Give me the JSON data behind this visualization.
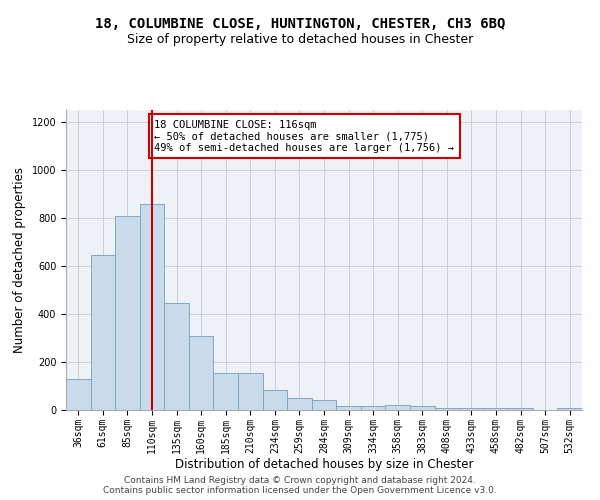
{
  "title_line1": "18, COLUMBINE CLOSE, HUNTINGTON, CHESTER, CH3 6BQ",
  "title_line2": "Size of property relative to detached houses in Chester",
  "xlabel": "Distribution of detached houses by size in Chester",
  "ylabel": "Number of detached properties",
  "bar_color": "#c9daea",
  "bar_edge_color": "#7aaac8",
  "grid_color": "#c8d0d8",
  "bg_color": "#eef2f7",
  "vline_color": "#cc0000",
  "vline_x": 3,
  "annotation_box_color": "#ffffff",
  "annotation_box_edge": "#cc0000",
  "annotation_line1": "18 COLUMBINE CLOSE: 116sqm",
  "annotation_line2": "← 50% of detached houses are smaller (1,775)",
  "annotation_line3": "49% of semi-detached houses are larger (1,756) →",
  "categories": [
    "36sqm",
    "61sqm",
    "85sqm",
    "110sqm",
    "135sqm",
    "160sqm",
    "185sqm",
    "210sqm",
    "234sqm",
    "259sqm",
    "284sqm",
    "309sqm",
    "334sqm",
    "358sqm",
    "383sqm",
    "408sqm",
    "433sqm",
    "458sqm",
    "482sqm",
    "507sqm",
    "532sqm"
  ],
  "values": [
    130,
    645,
    810,
    860,
    445,
    310,
    155,
    155,
    85,
    50,
    40,
    15,
    15,
    20,
    15,
    10,
    10,
    10,
    10,
    0,
    10
  ],
  "ylim": [
    0,
    1250
  ],
  "yticks": [
    0,
    200,
    400,
    600,
    800,
    1000,
    1200
  ],
  "footer_line1": "Contains HM Land Registry data © Crown copyright and database right 2024.",
  "footer_line2": "Contains public sector information licensed under the Open Government Licence v3.0.",
  "title_fontsize": 10,
  "subtitle_fontsize": 9,
  "label_fontsize": 8.5,
  "tick_fontsize": 7,
  "annotation_fontsize": 7.5,
  "footer_fontsize": 6.5
}
